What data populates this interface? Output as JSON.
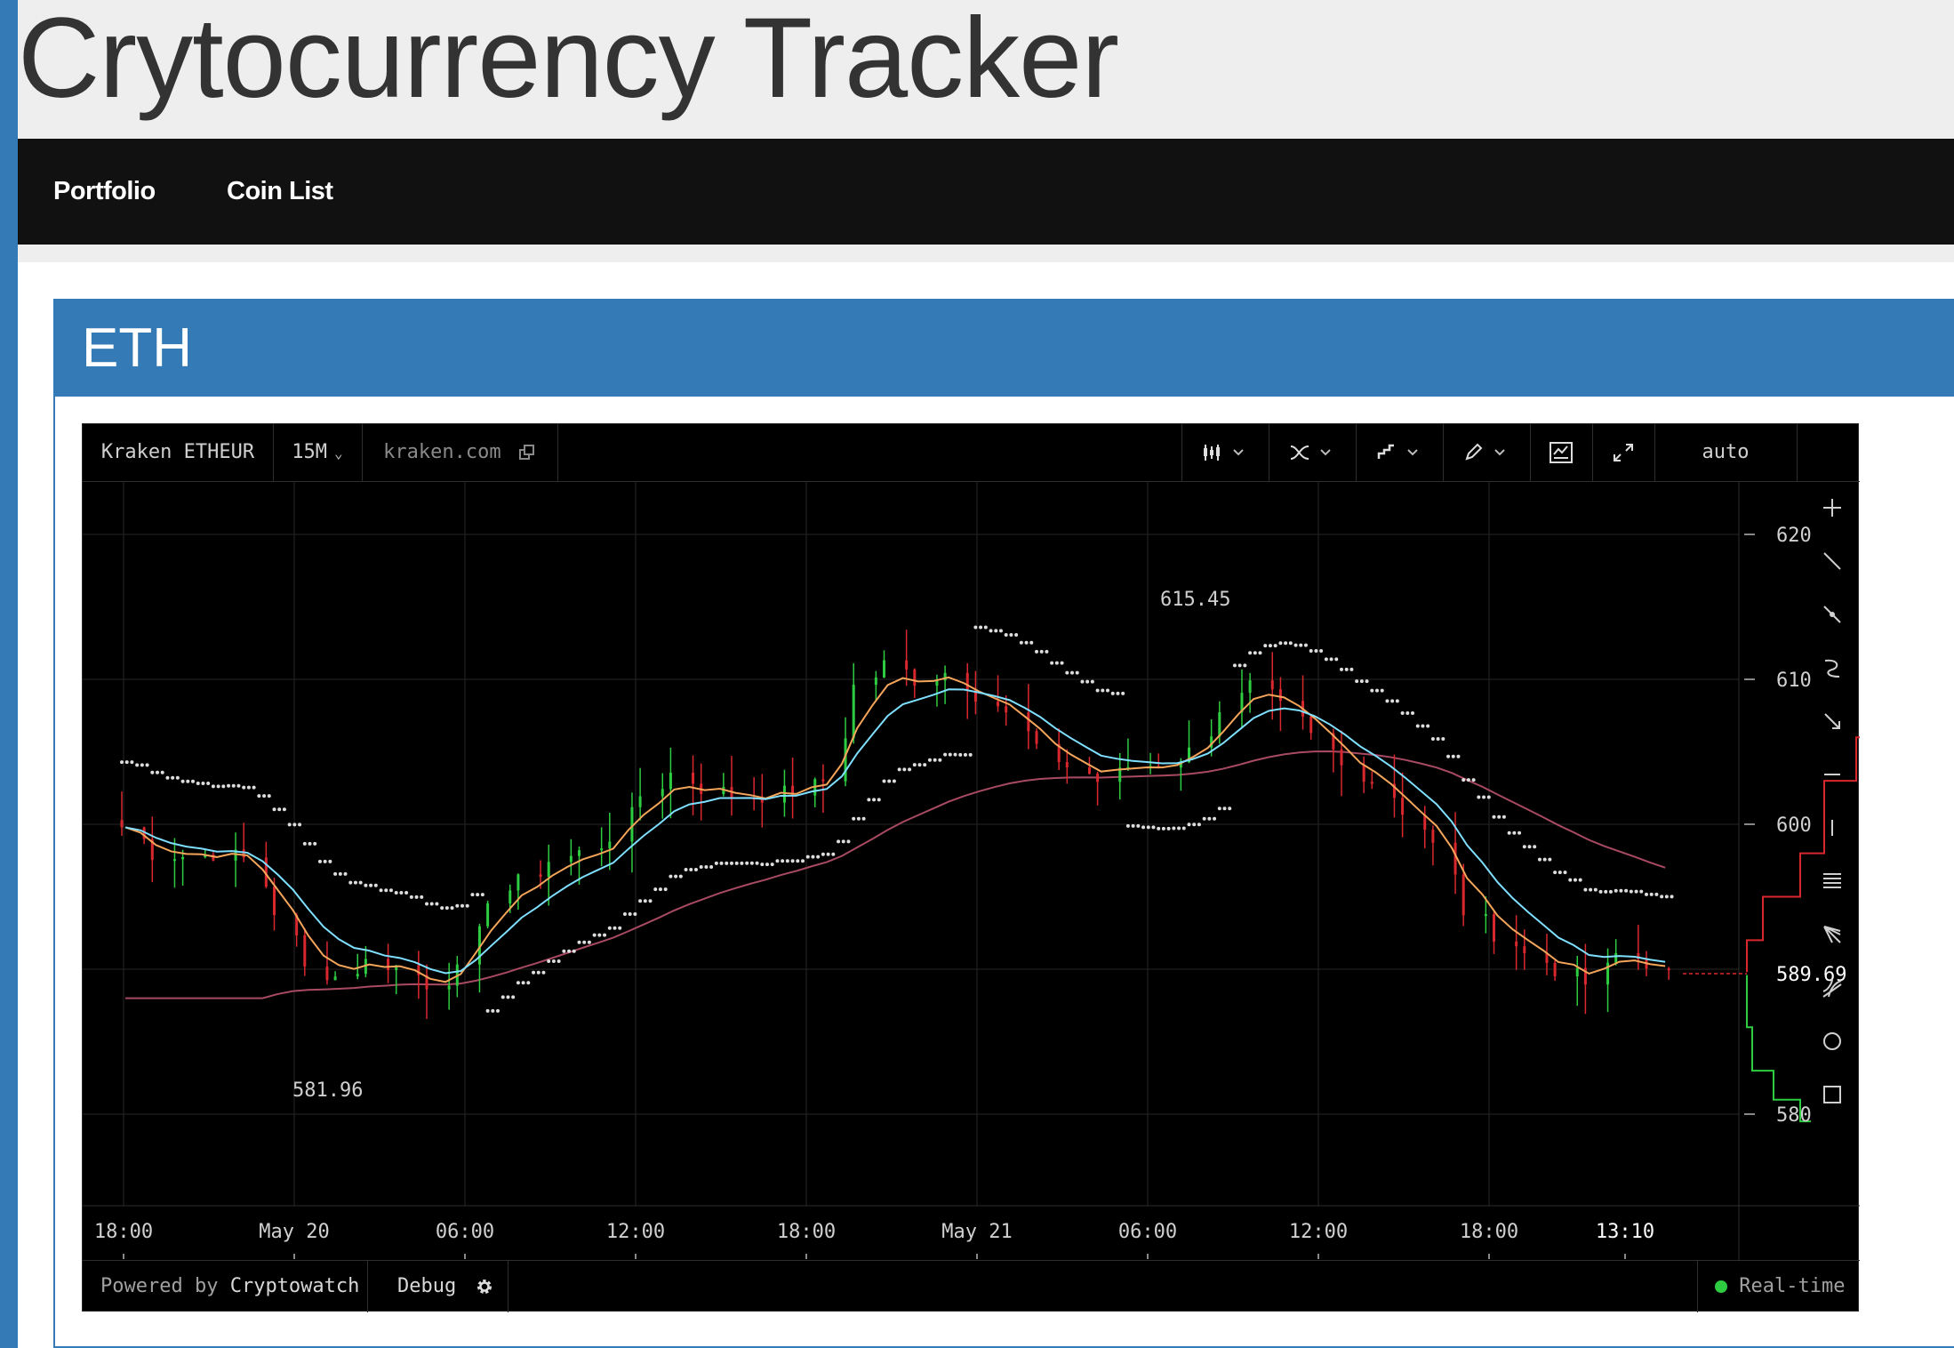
{
  "app": {
    "title": "Crytocurrency Tracker"
  },
  "nav": {
    "items": [
      {
        "label": "Portfolio"
      },
      {
        "label": "Coin List"
      }
    ]
  },
  "panel": {
    "title": "ETH"
  },
  "widget": {
    "market": "Kraken ETHEUR",
    "interval": "15M",
    "source": "kraken.com",
    "scale": "auto",
    "footer": {
      "powered_prefix": "Powered by",
      "powered_brand": "Cryptowatch",
      "debug": "Debug",
      "status": "Real-time"
    },
    "toolbar_icons": [
      "candles-icon",
      "indicators-icon",
      "chart-type-icon",
      "draw-icon",
      "screenshot-icon",
      "fullscreen-icon"
    ],
    "draw_tools": [
      "crosshair-icon",
      "line-tool-icon",
      "ray-tool-icon",
      "brush-tool-icon",
      "arrow-tool-icon",
      "horizontal-line-icon",
      "vertical-line-icon",
      "parallel-channel-icon",
      "fib-fan-icon",
      "pitchfork-icon",
      "circle-tool-icon",
      "rectangle-tool-icon"
    ]
  },
  "colors": {
    "accent": "#337ab7",
    "up": "#2ecc40",
    "down": "#d9272e",
    "ema_fast": "#f5a55a",
    "ema_slow": "#7fdfff",
    "sma_long": "#a84a62",
    "psar": "#dddddd"
  },
  "chart_data": {
    "type": "candlestick",
    "exchange": "Kraken",
    "pair": "ETHEUR",
    "interval": "15M",
    "x_tick_labels": [
      "18:00",
      "May 20",
      "06:00",
      "12:00",
      "18:00",
      "May 21",
      "06:00",
      "12:00",
      "18:00",
      "13:10"
    ],
    "y_tick_labels": [
      "620",
      "610",
      "600",
      "580"
    ],
    "ylim": [
      574,
      624
    ],
    "last_price": "589.69",
    "high_label": "615.45",
    "low_label": "581.96",
    "price_path": [
      [
        0,
        599.8
      ],
      [
        2,
        598.0
      ],
      [
        4,
        597.8
      ],
      [
        6,
        598.0
      ],
      [
        8,
        597.6
      ],
      [
        10,
        594.0
      ],
      [
        12,
        590.0
      ],
      [
        14,
        589.5
      ],
      [
        16,
        590.5
      ],
      [
        18,
        590.2
      ],
      [
        20,
        589.0
      ],
      [
        22,
        589.8
      ],
      [
        24,
        595.0
      ],
      [
        26,
        596.0
      ],
      [
        28,
        597.5
      ],
      [
        30,
        598.0
      ],
      [
        32,
        599.2
      ],
      [
        34,
        602.0
      ],
      [
        36,
        603.5
      ],
      [
        38,
        602.5
      ],
      [
        40,
        602.0
      ],
      [
        42,
        602.0
      ],
      [
        44,
        602.3
      ],
      [
        46,
        603.0
      ],
      [
        48,
        609.5
      ],
      [
        50,
        611.0
      ],
      [
        52,
        610.0
      ],
      [
        54,
        610.5
      ],
      [
        56,
        609.0
      ],
      [
        58,
        607.5
      ],
      [
        60,
        605.0
      ],
      [
        62,
        604.0
      ],
      [
        64,
        603.0
      ],
      [
        66,
        604.0
      ],
      [
        68,
        604.2
      ],
      [
        70,
        605.0
      ],
      [
        72,
        608.0
      ],
      [
        74,
        609.5
      ],
      [
        76,
        608.0
      ],
      [
        78,
        606.0
      ],
      [
        80,
        604.0
      ],
      [
        82,
        603.0
      ],
      [
        84,
        601.0
      ],
      [
        86,
        598.5
      ],
      [
        88,
        594.0
      ],
      [
        90,
        592.5
      ],
      [
        92,
        591.0
      ],
      [
        94,
        590.0
      ],
      [
        96,
        589.0
      ],
      [
        98,
        591.0
      ],
      [
        100,
        590.5
      ],
      [
        101,
        589.69
      ]
    ],
    "series": [
      {
        "color": "#f5a55a"
      },
      {
        "color": "#7fdfff"
      },
      {
        "color": "#a84a62"
      },
      {
        "color": "#dddddd"
      }
    ],
    "order_book": {
      "bids": [
        [
          589.6,
          0
        ],
        [
          586,
          4
        ],
        [
          583,
          20
        ],
        [
          581,
          40
        ],
        [
          579.5,
          48
        ]
      ],
      "asks": [
        [
          589.8,
          0
        ],
        [
          592,
          12
        ],
        [
          595,
          40
        ],
        [
          598,
          58
        ],
        [
          603,
          82
        ],
        [
          606,
          100
        ]
      ]
    }
  }
}
